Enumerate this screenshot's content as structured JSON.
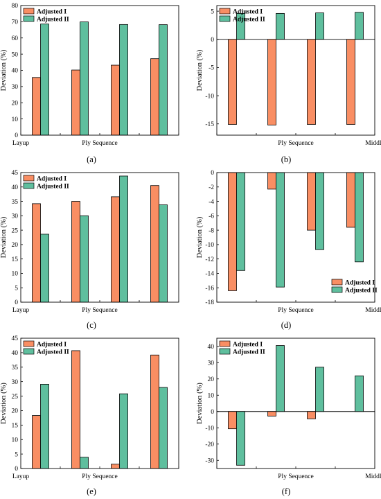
{
  "colors": {
    "adjusted_i": "#F98E63",
    "adjusted_ii": "#5FBF9E",
    "axis": "#000000"
  },
  "chart_data": [
    {
      "panel": "a",
      "caption": "(a)",
      "type": "bar",
      "ylabel": "Deviation (%)",
      "ylim": [
        0,
        80
      ],
      "yticks": [
        0,
        10,
        20,
        30,
        40,
        50,
        60,
        70,
        80
      ],
      "x_tick_labels": [
        "Layup",
        "",
        "Ply Sequence",
        "",
        ""
      ],
      "legend": "top-left",
      "series": [
        {
          "name": "Adjusted I",
          "values": [
            35.6,
            40.2,
            43.2,
            47.2
          ]
        },
        {
          "name": "Adjusted II",
          "values": [
            68.6,
            69.9,
            68.3,
            68.2
          ]
        }
      ]
    },
    {
      "panel": "b",
      "caption": "(b)",
      "type": "bar",
      "ylabel": "Deviation (%)",
      "ylim": [
        -17,
        6
      ],
      "yticks": [
        -15,
        -10,
        -5,
        0,
        5
      ],
      "x_tick_labels": [
        "",
        "",
        "Ply Sequence",
        "",
        "Middle"
      ],
      "legend": "top-left",
      "series": [
        {
          "name": "Adjusted I",
          "values": [
            -15.1,
            -15.2,
            -15.1,
            -15.1
          ]
        },
        {
          "name": "Adjusted II",
          "values": [
            4.6,
            4.6,
            4.7,
            4.8
          ]
        }
      ]
    },
    {
      "panel": "c",
      "caption": "(c)",
      "type": "bar",
      "ylabel": "Deviation (%)",
      "ylim": [
        0,
        45
      ],
      "yticks": [
        0,
        5,
        10,
        15,
        20,
        25,
        30,
        35,
        40,
        45
      ],
      "x_tick_labels": [
        "Layup",
        "",
        "Ply Sequence",
        "",
        ""
      ],
      "legend": "top-left",
      "series": [
        {
          "name": "Adjusted I",
          "values": [
            34.2,
            35.0,
            36.6,
            40.5
          ]
        },
        {
          "name": "Adjusted II",
          "values": [
            23.6,
            30.0,
            43.8,
            33.8
          ]
        }
      ]
    },
    {
      "panel": "d",
      "caption": "(d)",
      "type": "bar",
      "ylabel": "Deviation (%)",
      "ylim": [
        -18,
        0
      ],
      "yticks": [
        -18,
        -16,
        -14,
        -12,
        -10,
        -8,
        -6,
        -4,
        -2,
        0
      ],
      "x_tick_labels": [
        "",
        "",
        "Ply Sequence",
        "",
        "Middle"
      ],
      "legend": "bottom-right",
      "series": [
        {
          "name": "Adjusted I",
          "values": [
            -16.4,
            -2.3,
            -8.0,
            -7.6
          ]
        },
        {
          "name": "Adjusted II",
          "values": [
            -13.6,
            -15.9,
            -10.7,
            -12.4
          ]
        }
      ]
    },
    {
      "panel": "e",
      "caption": "(e)",
      "type": "bar",
      "ylabel": "Deviation (%)",
      "ylim": [
        0,
        45
      ],
      "yticks": [
        0,
        5,
        10,
        15,
        20,
        25,
        30,
        35,
        40,
        45
      ],
      "x_tick_labels": [
        "Layup",
        "",
        "Ply Sequence",
        "",
        ""
      ],
      "legend": "top-left",
      "series": [
        {
          "name": "Adjusted I",
          "values": [
            18.3,
            40.7,
            1.5,
            39.2
          ]
        },
        {
          "name": "Adjusted II",
          "values": [
            29.1,
            3.9,
            25.8,
            28.0
          ]
        }
      ]
    },
    {
      "panel": "f",
      "caption": "(f)",
      "type": "bar",
      "ylabel": "Deviation (%)",
      "ylim": [
        -35,
        45
      ],
      "yticks": [
        -30,
        -20,
        -10,
        0,
        10,
        20,
        30,
        40
      ],
      "x_tick_labels": [
        "",
        "",
        "Ply Sequence",
        "",
        "Middle"
      ],
      "legend": "top-left",
      "series": [
        {
          "name": "Adjusted I",
          "values": [
            -10.6,
            -2.8,
            -4.5,
            0
          ]
        },
        {
          "name": "Adjusted II",
          "values": [
            -33.0,
            40.5,
            27.2,
            21.9
          ]
        }
      ]
    }
  ]
}
